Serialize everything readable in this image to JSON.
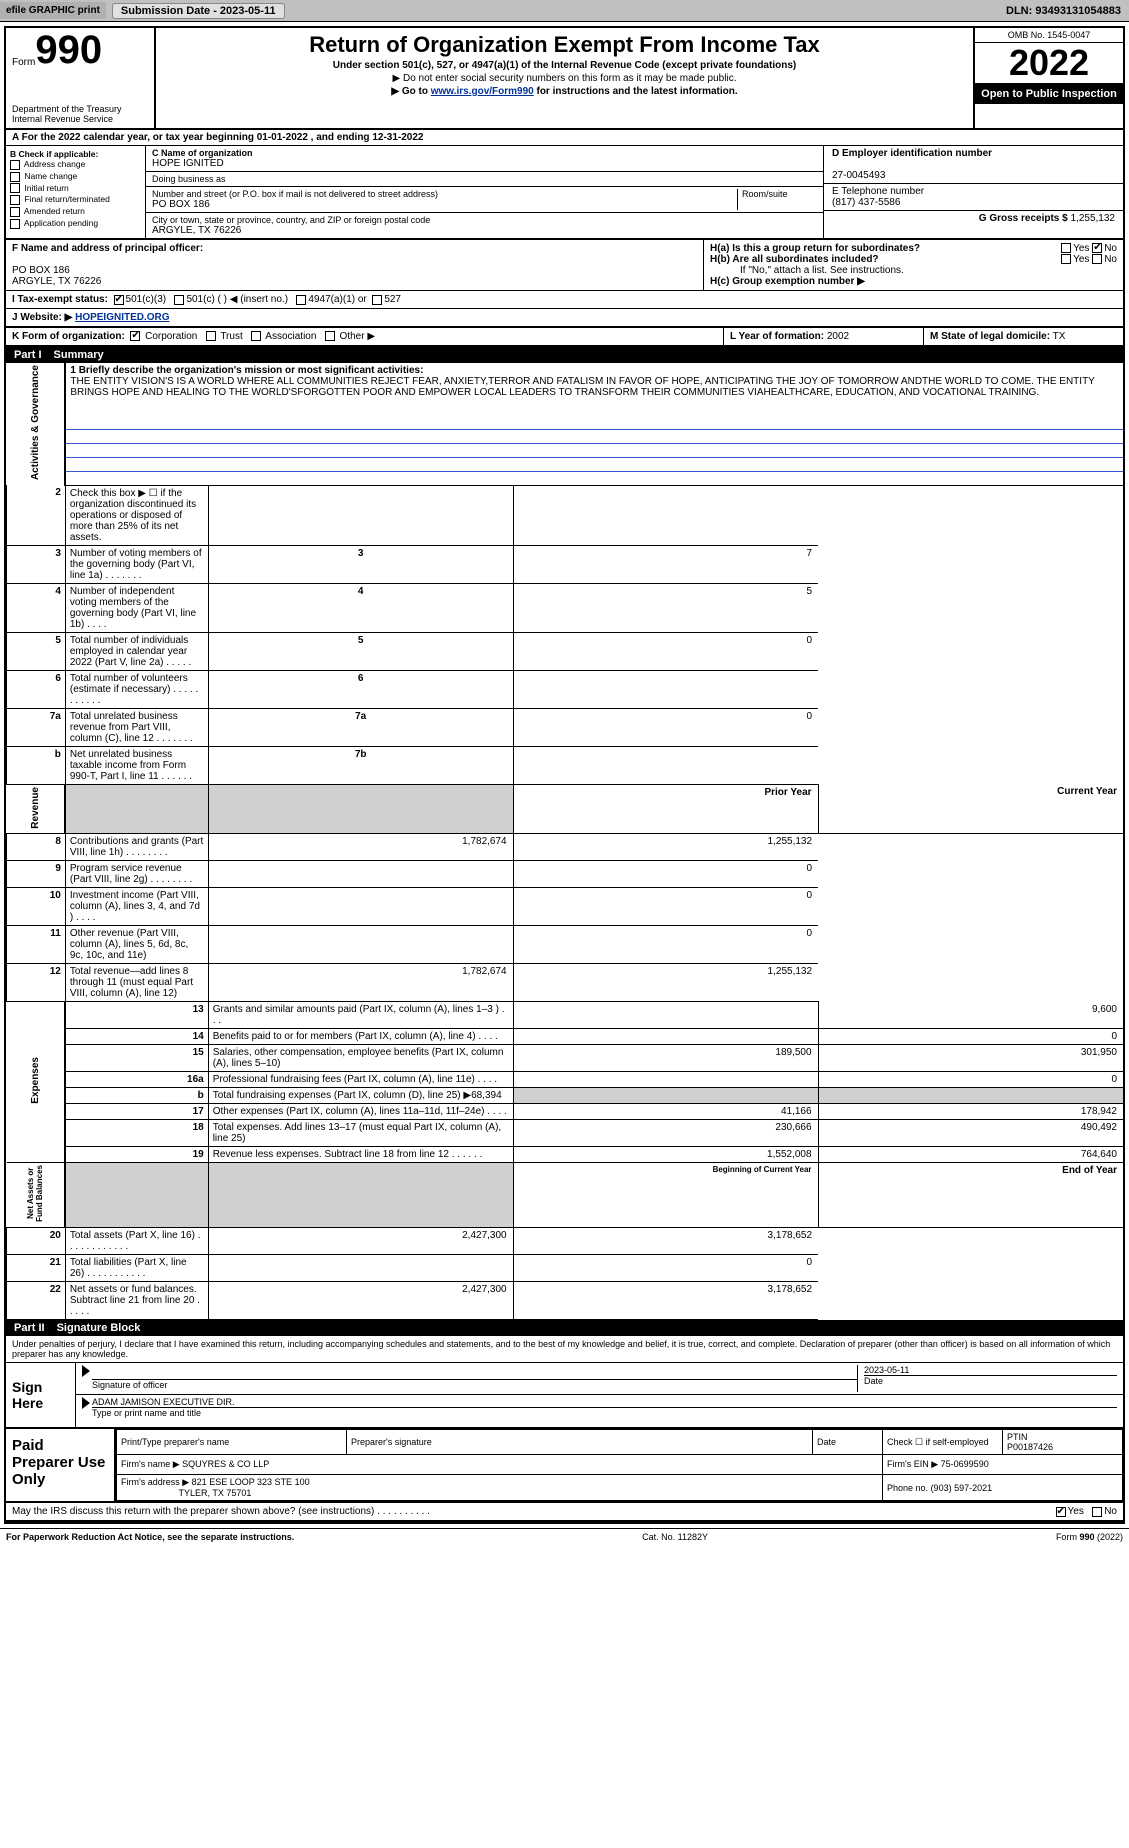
{
  "colors": {
    "topbar_bg": "#c0c0c0",
    "btn_bg": "#e0e0e0",
    "black": "#000000",
    "white": "#ffffff",
    "link": "#003399",
    "shade": "#d0d0d0",
    "blueline": "#3355cc"
  },
  "topbar": {
    "efile": "efile GRAPHIC print",
    "submission_btn": "Submission Date - 2023-05-11",
    "dln": "DLN: 93493131054883"
  },
  "header": {
    "form_word": "Form",
    "form_num": "990",
    "dept": "Department of the Treasury\nInternal Revenue Service",
    "title": "Return of Organization Exempt From Income Tax",
    "sub1": "Under section 501(c), 527, or 4947(a)(1) of the Internal Revenue Code (except private foundations)",
    "sub2": "▶ Do not enter social security numbers on this form as it may be made public.",
    "sub3_pre": "▶ Go to ",
    "sub3_link": "www.irs.gov/Form990",
    "sub3_post": " for instructions and the latest information.",
    "omb": "OMB No. 1545-0047",
    "year": "2022",
    "otp": "Open to Public Inspection"
  },
  "cy_line": "A For the 2022 calendar year, or tax year beginning 01-01-2022   , and ending 12-31-2022",
  "checkB": {
    "label": "B Check if applicable:",
    "items": [
      "Address change",
      "Name change",
      "Initial return",
      "Final return/terminated",
      "Amended return",
      "Application pending"
    ]
  },
  "orgC": {
    "name_label": "C Name of organization",
    "name": "HOPE IGNITED",
    "dba_label": "Doing business as",
    "dba": "",
    "street_label": "Number and street (or P.O. box if mail is not delivered to street address)",
    "room_label": "Room/suite",
    "street": "PO BOX 186",
    "city_label": "City or town, state or province, country, and ZIP or foreign postal code",
    "city": "ARGYLE, TX  76226"
  },
  "boxD": {
    "label": "D Employer identification number",
    "value": "27-0045493"
  },
  "boxE": {
    "label": "E Telephone number",
    "value": "(817) 437-5586"
  },
  "boxG": {
    "label": "G Gross receipts $",
    "value": "1,255,132"
  },
  "boxF": {
    "label": "F  Name and address of principal officer:",
    "addr1": "PO BOX 186",
    "addr2": "ARGYLE, TX  76226"
  },
  "boxH": {
    "a": "H(a)  Is this a group return for subordinates?",
    "a_yes": "Yes",
    "a_no": "No",
    "b": "H(b)  Are all subordinates included?",
    "b_yes": "Yes",
    "b_no": "No",
    "b_note": "If \"No,\" attach a list. See instructions.",
    "c": "H(c)  Group exemption number ▶"
  },
  "boxI": {
    "label": "I   Tax-exempt status:",
    "opt1": "501(c)(3)",
    "opt2": "501(c) (   ) ◀ (insert no.)",
    "opt3": "4947(a)(1) or",
    "opt4": "527"
  },
  "boxJ": {
    "label": "J   Website: ▶",
    "value": "HOPEIGNITED.ORG"
  },
  "boxK": {
    "label": "K Form of organization:",
    "opts": [
      "Corporation",
      "Trust",
      "Association",
      "Other ▶"
    ]
  },
  "boxL": {
    "label": "L Year of formation:",
    "value": "2002"
  },
  "boxM": {
    "label": "M State of legal domicile:",
    "value": "TX"
  },
  "part1": {
    "num": "Part I",
    "title": "Summary"
  },
  "mission": {
    "label": "1  Briefly describe the organization's mission or most significant activities:",
    "text": "THE ENTITY VISION'S IS A WORLD WHERE ALL COMMUNITIES REJECT FEAR, ANXIETY,TERROR AND FATALISM IN FAVOR OF HOPE, ANTICIPATING THE JOY OF TOMORROW ANDTHE WORLD TO COME. THE ENTITY BRINGS HOPE AND HEALING TO THE WORLD'SFORGOTTEN POOR AND EMPOWER LOCAL LEADERS TO TRANSFORM THEIR COMMUNITIES VIAHEALTHCARE, EDUCATION, AND VOCATIONAL TRAINING."
  },
  "gov_rows": [
    {
      "n": "2",
      "t": "Check this box ▶ ☐  if the organization discontinued its operations or disposed of more than 25% of its net assets.",
      "b": "",
      "v": ""
    },
    {
      "n": "3",
      "t": "Number of voting members of the governing body (Part VI, line 1a)  .    .    .    .    .    .    .",
      "b": "3",
      "v": "7"
    },
    {
      "n": "4",
      "t": "Number of independent voting members of the governing body (Part VI, line 1b)  .    .    .    .",
      "b": "4",
      "v": "5"
    },
    {
      "n": "5",
      "t": "Total number of individuals employed in calendar year 2022 (Part V, line 2a)  .    .    .    .    .",
      "b": "5",
      "v": "0"
    },
    {
      "n": "6",
      "t": "Total number of volunteers (estimate if necessary)   .    .    .    .    .    .    .    .    .    .    .",
      "b": "6",
      "v": ""
    },
    {
      "n": "7a",
      "t": "Total unrelated business revenue from Part VIII, column (C), line 12  .    .    .    .    .    .    .",
      "b": "7a",
      "v": "0"
    },
    {
      "n": "b",
      "t": "Net unrelated business taxable income from Form 990-T, Part I, line 11   .    .    .    .    .    .",
      "b": "7b",
      "v": ""
    }
  ],
  "col_hdr": {
    "prior": "Prior Year",
    "current": "Current Year"
  },
  "rev_rows": [
    {
      "n": "8",
      "t": "Contributions and grants (Part VIII, line 1h)   .    .    .    .    .    .    .    .",
      "p": "1,782,674",
      "c": "1,255,132"
    },
    {
      "n": "9",
      "t": "Program service revenue (Part VIII, line 2g)  .    .    .    .    .    .    .    .",
      "p": "",
      "c": "0"
    },
    {
      "n": "10",
      "t": "Investment income (Part VIII, column (A), lines 3, 4, and 7d )  .    .    .    .",
      "p": "",
      "c": "0"
    },
    {
      "n": "11",
      "t": "Other revenue (Part VIII, column (A), lines 5, 6d, 8c, 9c, 10c, and 11e)",
      "p": "",
      "c": "0"
    },
    {
      "n": "12",
      "t": "Total revenue—add lines 8 through 11 (must equal Part VIII, column (A), line 12)",
      "p": "1,782,674",
      "c": "1,255,132"
    }
  ],
  "exp_rows": [
    {
      "n": "13",
      "t": "Grants and similar amounts paid (Part IX, column (A), lines 1–3 )  .    .    .",
      "p": "",
      "c": "9,600"
    },
    {
      "n": "14",
      "t": "Benefits paid to or for members (Part IX, column (A), line 4)  .    .    .    .",
      "p": "",
      "c": "0"
    },
    {
      "n": "15",
      "t": "Salaries, other compensation, employee benefits (Part IX, column (A), lines 5–10)",
      "p": "189,500",
      "c": "301,950"
    },
    {
      "n": "16a",
      "t": "Professional fundraising fees (Part IX, column (A), line 11e)  .    .    .    .",
      "p": "",
      "c": "0"
    },
    {
      "n": "b",
      "t": "Total fundraising expenses (Part IX, column (D), line 25) ▶68,394",
      "p": "shade",
      "c": "shade"
    },
    {
      "n": "17",
      "t": "Other expenses (Part IX, column (A), lines 11a–11d, 11f–24e)  .    .    .    .",
      "p": "41,166",
      "c": "178,942"
    },
    {
      "n": "18",
      "t": "Total expenses. Add lines 13–17 (must equal Part IX, column (A), line 25)",
      "p": "230,666",
      "c": "490,492"
    },
    {
      "n": "19",
      "t": "Revenue less expenses. Subtract line 18 from line 12  .    .    .    .    .    .",
      "p": "1,552,008",
      "c": "764,640"
    }
  ],
  "net_hdr": {
    "prior": "Beginning of Current Year",
    "current": "End of Year"
  },
  "net_rows": [
    {
      "n": "20",
      "t": "Total assets (Part X, line 16)  .    .    .    .    .    .    .    .    .    .    .    .",
      "p": "2,427,300",
      "c": "3,178,652"
    },
    {
      "n": "21",
      "t": "Total liabilities (Part X, line 26)  .    .    .    .    .    .    .    .    .    .    .",
      "p": "",
      "c": "0"
    },
    {
      "n": "22",
      "t": "Net assets or fund balances. Subtract line 21 from line 20  .    .    .    .    .",
      "p": "2,427,300",
      "c": "3,178,652"
    }
  ],
  "side_labels": {
    "gov": "Activities & Governance",
    "rev": "Revenue",
    "exp": "Expenses",
    "net": "Net Assets or\nFund Balances"
  },
  "part2": {
    "num": "Part II",
    "title": "Signature Block"
  },
  "sig_note": "Under penalties of perjury, I declare that I have examined this return, including accompanying schedules and statements, and to the best of my knowledge and belief, it is true, correct, and complete. Declaration of preparer (other than officer) is based on all information of which preparer has any knowledge.",
  "sign_here": "Sign Here",
  "sig": {
    "date": "2023-05-11",
    "sig_label": "Signature of officer",
    "date_label": "Date",
    "name": "ADAM JAMISON  EXECUTIVE DIR.",
    "name_label": "Type or print name and title"
  },
  "paid": {
    "label": "Paid Preparer Use Only",
    "h_name": "Print/Type preparer's name",
    "h_sig": "Preparer's signature",
    "h_date": "Date",
    "h_check": "Check ☐ if self-employed",
    "h_ptin": "PTIN",
    "ptin": "P00187426",
    "firm_label": "Firm's name    ▶",
    "firm": "SQUYRES & CO LLP",
    "ein_label": "Firm's EIN ▶",
    "ein": "75-0699590",
    "addr_label": "Firm's address ▶",
    "addr1": "821 ESE LOOP 323 STE 100",
    "addr2": "TYLER, TX  75701",
    "phone_label": "Phone no.",
    "phone": "(903) 597-2021"
  },
  "discuss": {
    "text": "May the IRS discuss this return with the preparer shown above? (see instructions)  .    .    .    .    .    .    .    .    .    .",
    "yes": "Yes",
    "no": "No"
  },
  "footer": {
    "left": "For Paperwork Reduction Act Notice, see the separate instructions.",
    "mid": "Cat. No. 11282Y",
    "right": "Form 990 (2022)"
  }
}
